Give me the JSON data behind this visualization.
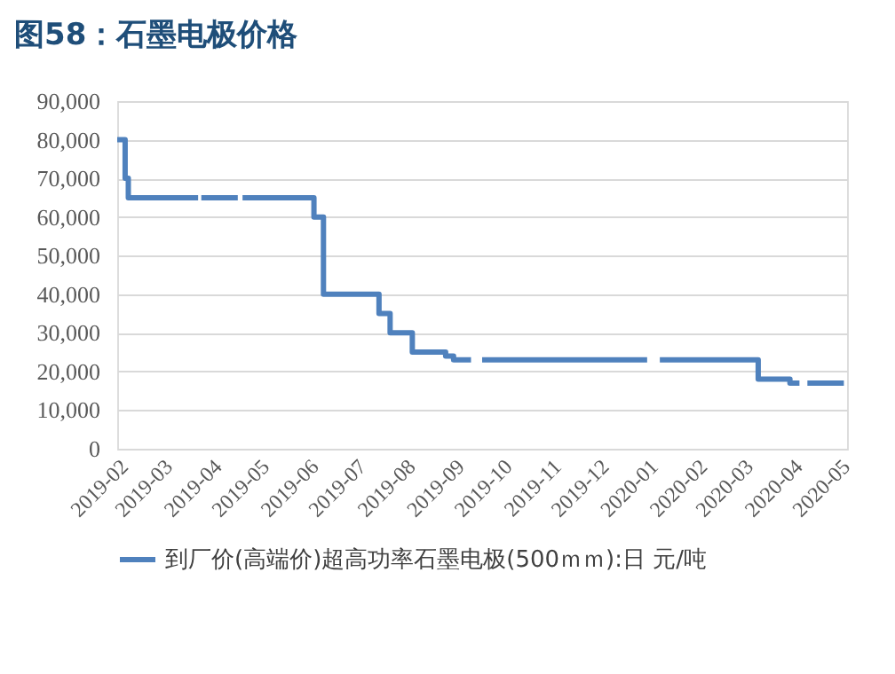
{
  "chart_data": {
    "type": "step",
    "title": "图58：石墨电极价格",
    "x": [
      "2019-02-01",
      "2019-02-06",
      "2019-02-08",
      "2019-03-24",
      "2019-03-25",
      "2019-03-26",
      "2019-04-18",
      "2019-04-19",
      "2019-04-21",
      "2019-06-05",
      "2019-06-11",
      "2019-07-16",
      "2019-07-23",
      "2019-08-06",
      "2019-08-27",
      "2019-09-01",
      "2019-09-12",
      "2019-09-13",
      "2019-09-19",
      "2020-01-01",
      "2020-01-02",
      "2020-01-09",
      "2020-03-11",
      "2020-03-31",
      "2020-04-06",
      "2020-04-07",
      "2020-04-11",
      "2020-05-04"
    ],
    "series": [
      {
        "name": "到厂价(高端价)超高功率石墨电极(500ｍｍ):日 元/吨",
        "color": "#4f81bd",
        "values": [
          80000,
          70000,
          65000,
          65000,
          null,
          65000,
          65000,
          null,
          65000,
          60000,
          40000,
          35000,
          30000,
          25000,
          24000,
          23000,
          23000,
          null,
          23000,
          23000,
          null,
          23000,
          18000,
          17000,
          17000,
          null,
          17000,
          17000
        ]
      }
    ],
    "xlim": [
      "2019-02-01",
      "2020-05-06"
    ],
    "xticks": [
      "2019-02",
      "2019-03",
      "2019-04",
      "2019-05",
      "2019-06",
      "2019-07",
      "2019-08",
      "2019-09",
      "2019-10",
      "2019-11",
      "2019-12",
      "2020-01",
      "2020-02",
      "2020-03",
      "2020-04",
      "2020-05"
    ],
    "ylim": [
      0,
      90000
    ],
    "yticks": [
      0,
      {
        "value": 10000,
        "label": "10,000"
      },
      {
        "value": 20000,
        "label": "20,000"
      },
      {
        "value": 30000,
        "label": "30,000"
      },
      {
        "value": 40000,
        "label": "40,000"
      },
      {
        "value": 50000,
        "label": "50,000"
      },
      {
        "value": 60000,
        "label": "60,000"
      },
      {
        "value": 70000,
        "label": "70,000"
      },
      {
        "value": 80000,
        "label": "80,000"
      },
      {
        "value": 90000,
        "label": "90,000"
      }
    ],
    "grid": "y",
    "legend": "bottom"
  }
}
